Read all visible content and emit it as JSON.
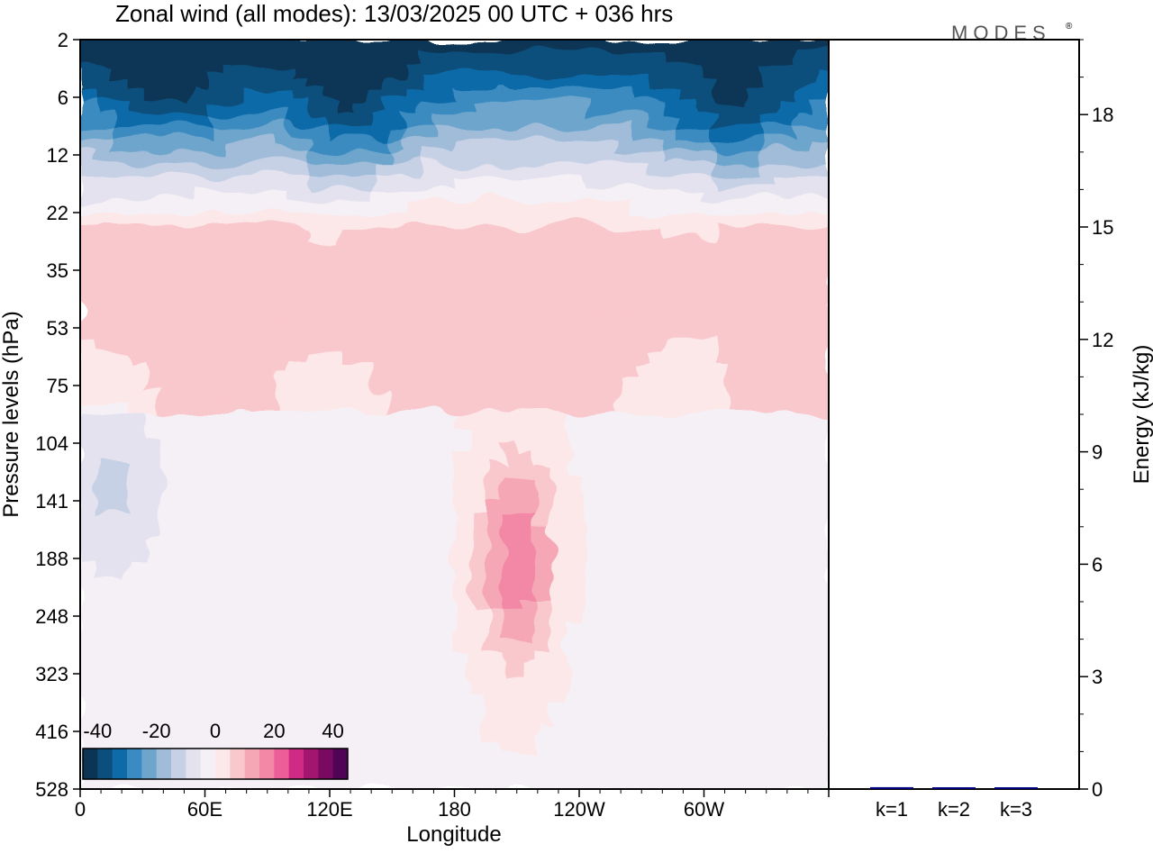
{
  "title": "Zonal wind (all modes):  13/03/2025  00 UTC  + 036 hrs",
  "logo": {
    "text": "MODES",
    "mark": "®"
  },
  "chart_data": [
    {
      "type": "heatmap",
      "variable": "Zonal wind (all modes)",
      "xlabel": "Longitude",
      "ylabel": "Pressure levels (hPa)",
      "x_ticks": [
        "0",
        "60E",
        "120E",
        "180",
        "120W",
        "60W"
      ],
      "x_tick_degrees": [
        0,
        60,
        120,
        180,
        240,
        300
      ],
      "xlim": [
        0,
        360
      ],
      "y_ticks": [
        "2",
        "6",
        "12",
        "22",
        "35",
        "53",
        "75",
        "104",
        "141",
        "188",
        "248",
        "323",
        "416",
        "528"
      ],
      "y_log_pressure": [
        2,
        6,
        12,
        22,
        35,
        53,
        75,
        104,
        141,
        188,
        248,
        323,
        416,
        528
      ],
      "ylim": [
        2,
        528
      ],
      "colorbar": {
        "tick_labels": [
          "-40",
          "-20",
          "0",
          "20",
          "40"
        ],
        "tick_values": [
          -40,
          -20,
          0,
          20,
          40
        ],
        "range": [
          -45,
          45
        ],
        "bins": 18,
        "colors": [
          "#0c3555",
          "#0c4f7c",
          "#0f6ba8",
          "#3a8bc1",
          "#6ea5cc",
          "#a0bcd8",
          "#c7d1e6",
          "#e4e2ef",
          "#f5f0f5",
          "#fde8e9",
          "#f9c8cd",
          "#f6a7b6",
          "#f287a6",
          "#ed5e99",
          "#d02a84",
          "#a3166f",
          "#7a0a61",
          "#4f0456"
        ]
      },
      "features": [
        {
          "desc": "easterly core upper levels",
          "lon": [
            10,
            75
          ],
          "p": [
            2,
            7
          ],
          "value": -44
        },
        {
          "desc": "easterly core upper levels",
          "lon": [
            105,
            155
          ],
          "p": [
            2,
            10
          ],
          "value": -44
        },
        {
          "desc": "easterly core upper levels",
          "lon": [
            285,
            345
          ],
          "p": [
            3,
            9
          ],
          "value": -42
        },
        {
          "desc": "westerly jet core",
          "lon": [
            205,
            215
          ],
          "p": [
            130,
            270
          ],
          "value": 22
        },
        {
          "desc": "westerly band mid levels",
          "lon": [
            20,
            360
          ],
          "p": [
            25,
            60
          ],
          "value": 8
        },
        {
          "desc": "easterly patch lower levels",
          "lon": [
            0,
            30
          ],
          "p": [
            90,
            190
          ],
          "value": -12
        }
      ]
    },
    {
      "type": "bar",
      "categories": [
        "k=1",
        "k=2",
        "k=3"
      ],
      "values": [
        0.05,
        0.02,
        0.01
      ],
      "ylabel": "Energy (kJ/kg)",
      "ylim": [
        0,
        20
      ],
      "y_ticks": [
        "0",
        "3",
        "6",
        "9",
        "12",
        "15",
        "18"
      ],
      "y_tick_values": [
        0,
        3,
        6,
        9,
        12,
        15,
        18
      ],
      "bar_color": "#000080"
    }
  ]
}
